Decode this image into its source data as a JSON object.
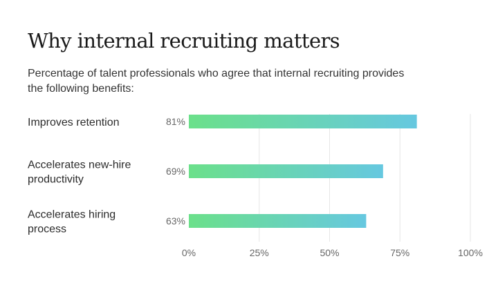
{
  "title": "Why internal recruiting matters",
  "subtitle": "Percentage of talent professionals who agree that internal recruiting provides the following benefits:",
  "colors": {
    "bar_start": "#6be08a",
    "bar_end": "#66c8e0",
    "grid": "#e6e6e6"
  },
  "chart_data": {
    "type": "bar",
    "orientation": "horizontal",
    "categories": [
      [
        "Improves retention"
      ],
      [
        "Accelerates new-hire",
        "productivity"
      ],
      [
        "Accelerates hiring",
        "process"
      ]
    ],
    "values": [
      81,
      69,
      63
    ],
    "value_labels": [
      "81%",
      "69%",
      "63%"
    ],
    "xlim": [
      0,
      100
    ],
    "xticks": [
      0,
      25,
      50,
      75,
      100
    ],
    "xtick_labels": [
      "0%",
      "25%",
      "50%",
      "75%",
      "100%"
    ],
    "grid": true
  }
}
